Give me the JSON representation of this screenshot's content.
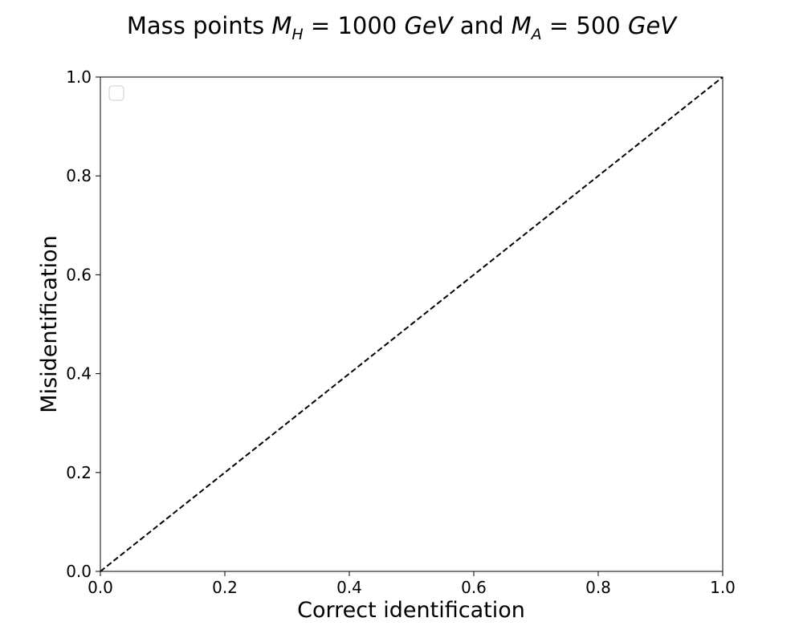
{
  "chart_data": {
    "type": "line",
    "title": {
      "prefix": "Mass points ",
      "mh_sym": "M",
      "mh_sub": "H",
      "mh_eq": " = 1000 ",
      "unit1": "GeV",
      "mid": " and ",
      "ma_sym": "M",
      "ma_sub": "A",
      "ma_eq": " = 500 ",
      "unit2": "GeV"
    },
    "xlabel": "Correct identification",
    "ylabel": "Misidentification",
    "xlim": [
      0,
      1
    ],
    "ylim": [
      0,
      1
    ],
    "xticks": [
      "0.0",
      "0.2",
      "0.4",
      "0.6",
      "0.8",
      "1.0"
    ],
    "yticks": [
      "0.0",
      "0.2",
      "0.4",
      "0.6",
      "0.8",
      "1.0"
    ],
    "grid": false,
    "legend": {
      "placement": "upper-left",
      "entries": []
    },
    "series": [
      {
        "x": [
          0,
          1
        ],
        "y": [
          0,
          1
        ],
        "color": "#000000",
        "style": "dashed"
      }
    ]
  }
}
